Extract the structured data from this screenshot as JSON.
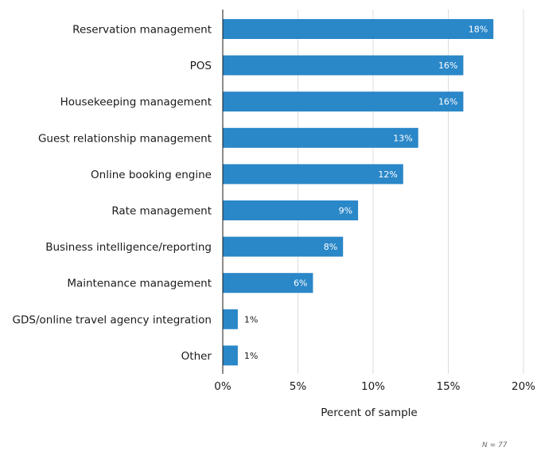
{
  "chart_data": {
    "type": "bar",
    "orientation": "horizontal",
    "categories": [
      "Reservation management",
      "POS",
      "Housekeeping management",
      "Guest relationship management",
      "Online booking engine",
      "Rate management",
      "Business intelligence/reporting",
      "Maintenance management",
      "GDS/online travel agency integration",
      "Other"
    ],
    "values": [
      18,
      16,
      16,
      13,
      12,
      9,
      8,
      6,
      1,
      1
    ],
    "value_labels": [
      "18%",
      "16%",
      "16%",
      "13%",
      "12%",
      "9%",
      "8%",
      "6%",
      "1%",
      "1%"
    ],
    "xlabel": "Percent of sample",
    "ylabel": "",
    "xlim": [
      0,
      20
    ],
    "xticks": [
      0,
      5,
      10,
      15,
      20
    ],
    "xtick_labels": [
      "0%",
      "5%",
      "10%",
      "15%",
      "20%"
    ],
    "grid": true,
    "bar_color": "#2a87c8",
    "grid_color": "#dcdcdc"
  },
  "footnote": "N = 77"
}
